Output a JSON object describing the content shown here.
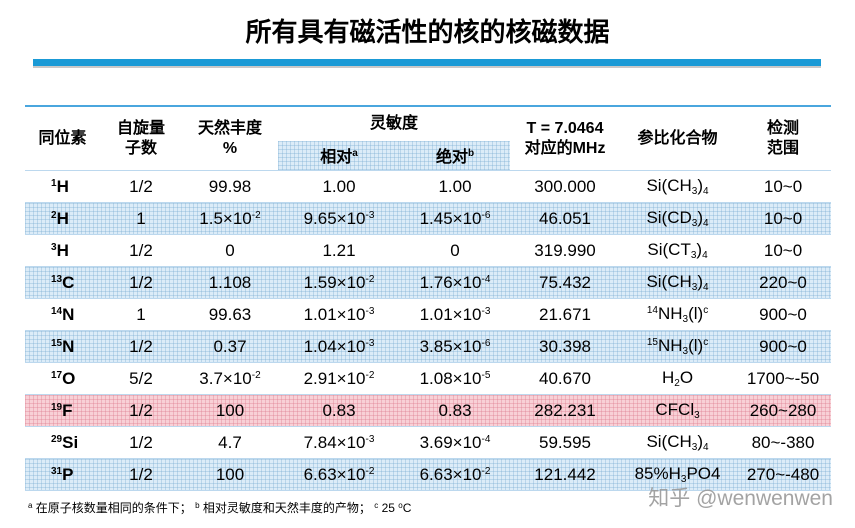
{
  "title": "所有具有磁活性的核的核磁数据",
  "table": {
    "headers": [
      [
        "同位素"
      ],
      [
        "自旋量",
        "子数"
      ],
      [
        "天然丰度",
        "%"
      ],
      [
        "灵敏度"
      ],
      [
        "T = 7.0464",
        "对应的MHz"
      ],
      [
        "参比化合物"
      ],
      [
        "检测",
        "范围"
      ]
    ],
    "subheaders": [
      [
        {
          "text": "相对"
        },
        {
          "sup": "a"
        }
      ],
      [
        {
          "text": "绝对"
        },
        {
          "sup": "b"
        }
      ]
    ],
    "rows": [
      [
        [
          {
            "sup": "1"
          },
          {
            "text": "H"
          }
        ],
        [
          {
            "text": "1/2"
          }
        ],
        [
          {
            "text": "99.98"
          }
        ],
        [
          {
            "text": "1.00"
          }
        ],
        [
          {
            "text": "1.00"
          }
        ],
        [
          {
            "text": "300.000"
          }
        ],
        [
          {
            "text": "Si(CH"
          },
          {
            "sub": "3"
          },
          {
            "text": ")"
          },
          {
            "sub": "4"
          }
        ],
        [
          {
            "text": "10~0"
          }
        ]
      ],
      [
        [
          {
            "sup": "2"
          },
          {
            "text": "H"
          }
        ],
        [
          {
            "text": "1"
          }
        ],
        [
          {
            "text": "1.5×10"
          },
          {
            "sup": "-2"
          }
        ],
        [
          {
            "text": "9.65×10"
          },
          {
            "sup": "-3"
          }
        ],
        [
          {
            "text": "1.45×10"
          },
          {
            "sup": "-6"
          }
        ],
        [
          {
            "text": "46.051"
          }
        ],
        [
          {
            "text": "Si(CD"
          },
          {
            "sub": "3"
          },
          {
            "text": ")"
          },
          {
            "sub": "4"
          }
        ],
        [
          {
            "text": "10~0"
          }
        ]
      ],
      [
        [
          {
            "sup": "3"
          },
          {
            "text": "H"
          }
        ],
        [
          {
            "text": "1/2"
          }
        ],
        [
          {
            "text": "0"
          }
        ],
        [
          {
            "text": "1.21"
          }
        ],
        [
          {
            "text": "0"
          }
        ],
        [
          {
            "text": "319.990"
          }
        ],
        [
          {
            "text": "Si(CT"
          },
          {
            "sub": "3"
          },
          {
            "text": ")"
          },
          {
            "sub": "4"
          }
        ],
        [
          {
            "text": "10~0"
          }
        ]
      ],
      [
        [
          {
            "sup": "13"
          },
          {
            "text": "C"
          }
        ],
        [
          {
            "text": "1/2"
          }
        ],
        [
          {
            "text": "1.108"
          }
        ],
        [
          {
            "text": "1.59×10"
          },
          {
            "sup": "-2"
          }
        ],
        [
          {
            "text": "1.76×10"
          },
          {
            "sup": "-4"
          }
        ],
        [
          {
            "text": "75.432"
          }
        ],
        [
          {
            "text": "Si(CH"
          },
          {
            "sub": "3"
          },
          {
            "text": ")"
          },
          {
            "sub": "4"
          }
        ],
        [
          {
            "text": "220~0"
          }
        ]
      ],
      [
        [
          {
            "sup": "14"
          },
          {
            "text": "N"
          }
        ],
        [
          {
            "text": "1"
          }
        ],
        [
          {
            "text": "99.63"
          }
        ],
        [
          {
            "text": "1.01×10"
          },
          {
            "sup": "-3"
          }
        ],
        [
          {
            "text": "1.01×10"
          },
          {
            "sup": "-3"
          }
        ],
        [
          {
            "text": "21.671"
          }
        ],
        [
          {
            "sup": "14"
          },
          {
            "text": "NH"
          },
          {
            "sub": "3"
          },
          {
            "text": "(l)"
          },
          {
            "sup": "c"
          }
        ],
        [
          {
            "text": "900~0"
          }
        ]
      ],
      [
        [
          {
            "sup": "15"
          },
          {
            "text": "N"
          }
        ],
        [
          {
            "text": "1/2"
          }
        ],
        [
          {
            "text": "0.37"
          }
        ],
        [
          {
            "text": "1.04×10"
          },
          {
            "sup": "-3"
          }
        ],
        [
          {
            "text": "3.85×10"
          },
          {
            "sup": "-6"
          }
        ],
        [
          {
            "text": "30.398"
          }
        ],
        [
          {
            "sup": "15"
          },
          {
            "text": "NH"
          },
          {
            "sub": "3"
          },
          {
            "text": "(l)"
          },
          {
            "sup": "c"
          }
        ],
        [
          {
            "text": "900~0"
          }
        ]
      ],
      [
        [
          {
            "sup": "17"
          },
          {
            "text": "O"
          }
        ],
        [
          {
            "text": "5/2"
          }
        ],
        [
          {
            "text": "3.7×10"
          },
          {
            "sup": "-2"
          }
        ],
        [
          {
            "text": "2.91×10"
          },
          {
            "sup": "-2"
          }
        ],
        [
          {
            "text": "1.08×10"
          },
          {
            "sup": "-5"
          }
        ],
        [
          {
            "text": "40.670"
          }
        ],
        [
          {
            "text": "H"
          },
          {
            "sub": "2"
          },
          {
            "text": "O"
          }
        ],
        [
          {
            "text": "1700~-50"
          }
        ]
      ],
      [
        [
          {
            "sup": "19"
          },
          {
            "text": "F"
          }
        ],
        [
          {
            "text": "1/2"
          }
        ],
        [
          {
            "text": "100"
          }
        ],
        [
          {
            "text": "0.83"
          }
        ],
        [
          {
            "text": "0.83"
          }
        ],
        [
          {
            "text": "282.231"
          }
        ],
        [
          {
            "text": "CFCl"
          },
          {
            "sub": "3"
          }
        ],
        [
          {
            "text": "260~280"
          }
        ]
      ],
      [
        [
          {
            "sup": "29"
          },
          {
            "text": "Si"
          }
        ],
        [
          {
            "text": "1/2"
          }
        ],
        [
          {
            "text": "4.7"
          }
        ],
        [
          {
            "text": "7.84×10"
          },
          {
            "sup": "-3"
          }
        ],
        [
          {
            "text": "3.69×10"
          },
          {
            "sup": "-4"
          }
        ],
        [
          {
            "text": "59.595"
          }
        ],
        [
          {
            "text": "Si(CH"
          },
          {
            "sub": "3"
          },
          {
            "text": ")"
          },
          {
            "sub": "4"
          }
        ],
        [
          {
            "text": "80~-380"
          }
        ]
      ],
      [
        [
          {
            "sup": "31"
          },
          {
            "text": "P"
          }
        ],
        [
          {
            "text": "1/2"
          }
        ],
        [
          {
            "text": "100"
          }
        ],
        [
          {
            "text": "6.63×10"
          },
          {
            "sup": "-2"
          }
        ],
        [
          {
            "text": "6.63×10"
          },
          {
            "sup": "-2"
          }
        ],
        [
          {
            "text": "121.442"
          }
        ],
        [
          {
            "text": "85%H"
          },
          {
            "sub": "3"
          },
          {
            "text": "PO4"
          }
        ],
        [
          {
            "text": "270~-480"
          }
        ]
      ]
    ]
  },
  "footnote": [
    {
      "sup": "a"
    },
    {
      "text": " 在原子核数量相同的条件下； "
    },
    {
      "sup": "b"
    },
    {
      "text": " 相对灵敏度和天然丰度的产物； "
    },
    {
      "sup": "c"
    },
    {
      "text": " 25 "
    },
    {
      "sup": "o"
    },
    {
      "text": "C"
    }
  ],
  "watermark": "知乎 @wenwenwen"
}
